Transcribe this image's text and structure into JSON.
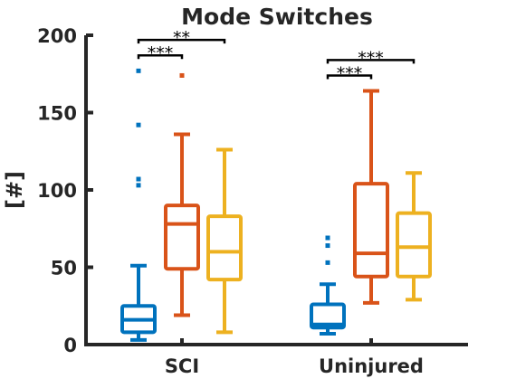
{
  "chart_data": {
    "type": "box",
    "title": "Mode Switches",
    "ylabel": "[#]",
    "xlabel": "",
    "ylim": [
      0,
      200
    ],
    "yticks": [
      0,
      50,
      100,
      150,
      200
    ],
    "grid": false,
    "legend": "none",
    "categories": [
      "SCI",
      "Uninjured"
    ],
    "colors": [
      "#0072BD",
      "#D95319",
      "#EDB120"
    ],
    "groups": [
      {
        "category": "SCI",
        "boxes": [
          {
            "color": "#0072BD",
            "whisker_low": 3,
            "q1": 8,
            "median": 16,
            "q3": 25,
            "whisker_high": 51,
            "outliers": [
              103,
              107,
              142,
              177
            ]
          },
          {
            "color": "#D95319",
            "whisker_low": 19,
            "q1": 49,
            "median": 78,
            "q3": 90,
            "whisker_high": 136,
            "outliers": [
              174
            ]
          },
          {
            "color": "#EDB120",
            "whisker_low": 8,
            "q1": 42,
            "median": 60,
            "q3": 83,
            "whisker_high": 126,
            "outliers": []
          }
        ]
      },
      {
        "category": "Uninjured",
        "boxes": [
          {
            "color": "#0072BD",
            "whisker_low": 7,
            "q1": 11,
            "median": 13,
            "q3": 26,
            "whisker_high": 39,
            "outliers": [
              53,
              64,
              69
            ]
          },
          {
            "color": "#D95319",
            "whisker_low": 27,
            "q1": 44,
            "median": 59,
            "q3": 104,
            "whisker_high": 164,
            "outliers": []
          },
          {
            "color": "#EDB120",
            "whisker_low": 29,
            "q1": 44,
            "median": 63,
            "q3": 85,
            "whisker_high": 111,
            "outliers": []
          }
        ]
      }
    ],
    "significance": [
      {
        "group": 0,
        "from": 0,
        "to": 1,
        "y": 187,
        "label": "***"
      },
      {
        "group": 0,
        "from": 0,
        "to": 2,
        "y": 197,
        "label": "**"
      },
      {
        "group": 1,
        "from": 0,
        "to": 1,
        "y": 174,
        "label": "***"
      },
      {
        "group": 1,
        "from": 0,
        "to": 2,
        "y": 184,
        "label": "***"
      }
    ]
  }
}
